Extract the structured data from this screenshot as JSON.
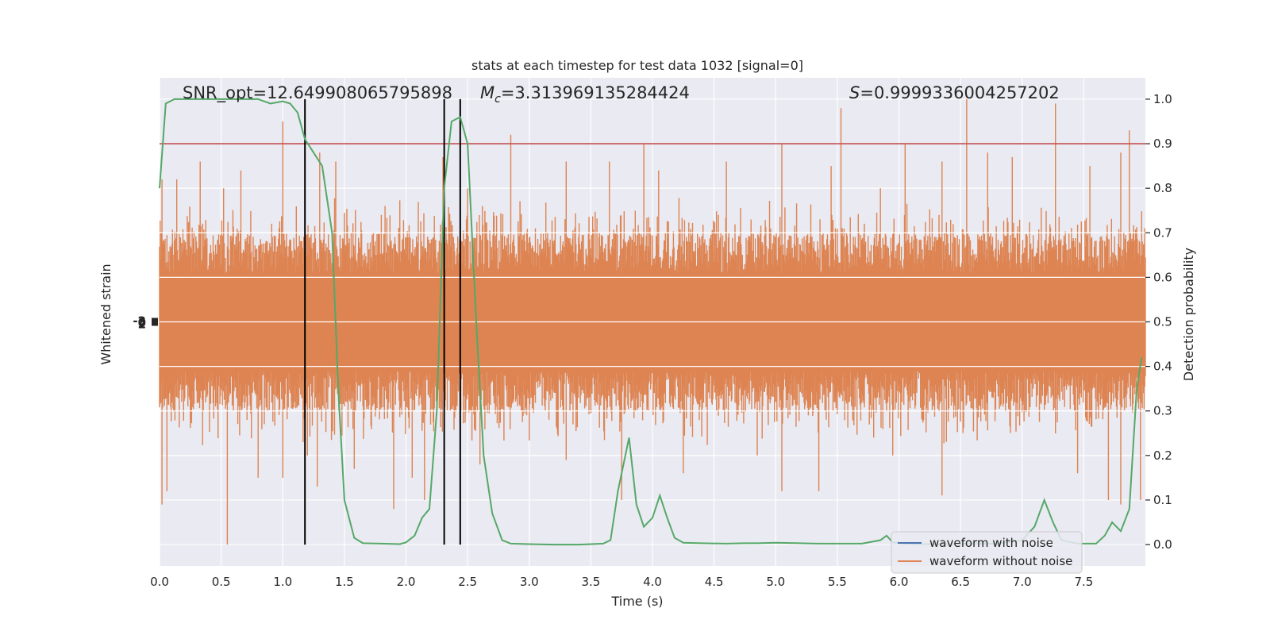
{
  "chart_data": {
    "type": "line",
    "title": "stats at each timestep for test data 1032 [signal=0]",
    "xlabel": "Time (s)",
    "ylabel_left": "Whitened strain",
    "ylabel_right": "Detection probability",
    "xlim": [
      0,
      8
    ],
    "ylim_right": [
      -0.048,
      1.048
    ],
    "x_ticks": [
      "0.0",
      "0.5",
      "1.0",
      "1.5",
      "2.0",
      "2.5",
      "3.0",
      "3.5",
      "4.0",
      "4.5",
      "5.0",
      "5.5",
      "6.0",
      "6.5",
      "7.0",
      "7.5"
    ],
    "y_ticks_right": [
      "0.0",
      "0.1",
      "0.2",
      "0.3",
      "0.4",
      "0.5",
      "0.6",
      "0.7",
      "0.8",
      "0.9",
      "1.0"
    ],
    "left_tick_labels": [
      "-2",
      "0",
      "2"
    ],
    "grid": true,
    "threshold": 0.9,
    "vlines": [
      1.18,
      2.31,
      2.44
    ],
    "annotations": {
      "snr": "SNR_opt=12.649908065795898",
      "mc_symbol": "M",
      "mc_sub": "c",
      "mc_value": "=3.313969135284424",
      "s_symbol": "S",
      "s_value": "=0.9999336004257202"
    },
    "legend": {
      "position": "lower-right",
      "entries": [
        {
          "label": "waveform with noise",
          "color": "#4c72b0"
        },
        {
          "label": "waveform without noise",
          "color": "#dd8452"
        }
      ]
    },
    "colors": {
      "noise": "#dd8452",
      "probability": "#55a868",
      "threshold": "#c44e52",
      "vline": "#000000",
      "plot_bg": "#eaeaf2",
      "grid": "#ffffff"
    },
    "series": [
      {
        "name": "waveform without noise",
        "band_center": 0.5,
        "band_halfwidth": 0.2,
        "upper_spikes": [
          [
            0.02,
            0.82
          ],
          [
            0.14,
            0.82
          ],
          [
            0.33,
            0.86
          ],
          [
            0.52,
            0.8
          ],
          [
            0.66,
            0.84
          ],
          [
            1.0,
            0.95
          ],
          [
            1.3,
            0.88
          ],
          [
            1.43,
            0.86
          ],
          [
            1.8,
            0.74
          ],
          [
            2.3,
            0.87
          ],
          [
            2.5,
            0.8
          ],
          [
            2.85,
            0.92
          ],
          [
            3.3,
            0.86
          ],
          [
            3.65,
            0.86
          ],
          [
            3.93,
            0.9
          ],
          [
            4.05,
            0.84
          ],
          [
            4.6,
            0.86
          ],
          [
            5.05,
            0.9
          ],
          [
            5.45,
            0.85
          ],
          [
            5.53,
            0.98
          ],
          [
            5.85,
            0.8
          ],
          [
            6.05,
            0.9
          ],
          [
            6.35,
            0.86
          ],
          [
            6.55,
            1.0
          ],
          [
            6.72,
            0.88
          ],
          [
            6.92,
            0.87
          ],
          [
            7.27,
            0.99
          ],
          [
            7.55,
            0.85
          ],
          [
            7.8,
            0.88
          ],
          [
            7.87,
            0.93
          ]
        ],
        "lower_spikes": [
          [
            0.02,
            0.09
          ],
          [
            0.06,
            0.12
          ],
          [
            0.55,
            0.0
          ],
          [
            0.8,
            0.15
          ],
          [
            1.0,
            0.15
          ],
          [
            1.2,
            0.2
          ],
          [
            1.28,
            0.13
          ],
          [
            1.58,
            0.17
          ],
          [
            1.9,
            0.08
          ],
          [
            2.05,
            0.15
          ],
          [
            2.15,
            0.1
          ],
          [
            2.6,
            0.18
          ],
          [
            3.3,
            0.19
          ],
          [
            3.75,
            0.1
          ],
          [
            4.25,
            0.16
          ],
          [
            4.85,
            0.2
          ],
          [
            5.05,
            0.12
          ],
          [
            5.35,
            0.12
          ],
          [
            5.95,
            0.2
          ],
          [
            6.35,
            0.11
          ],
          [
            7.45,
            0.16
          ],
          [
            7.7,
            0.1
          ],
          [
            7.8,
            0.09
          ],
          [
            7.96,
            0.1
          ]
        ]
      },
      {
        "name": "detection probability",
        "x": [
          0.0,
          0.05,
          0.12,
          0.2,
          0.3,
          0.4,
          0.5,
          0.6,
          0.7,
          0.8,
          0.9,
          1.0,
          1.06,
          1.12,
          1.18,
          1.25,
          1.32,
          1.4,
          1.45,
          1.5,
          1.58,
          1.65,
          1.8,
          1.95,
          2.0,
          2.07,
          2.13,
          2.19,
          2.25,
          2.31,
          2.37,
          2.44,
          2.5,
          2.57,
          2.63,
          2.7,
          2.78,
          2.85,
          3.0,
          3.2,
          3.4,
          3.6,
          3.66,
          3.72,
          3.81,
          3.87,
          3.93,
          4.0,
          4.06,
          4.12,
          4.18,
          4.25,
          4.4,
          4.6,
          4.75,
          4.85,
          5.0,
          5.2,
          5.35,
          5.5,
          5.7,
          5.85,
          5.9,
          5.95,
          6.05,
          6.2,
          6.4,
          6.6,
          6.8,
          7.0,
          7.1,
          7.18,
          7.25,
          7.32,
          7.45,
          7.6,
          7.67,
          7.73,
          7.8,
          7.87,
          7.93,
          7.97
        ],
        "y": [
          0.8,
          0.99,
          1.0,
          1.0,
          1.0,
          1.0,
          1.0,
          1.0,
          1.0,
          1.0,
          0.99,
          0.995,
          0.99,
          0.97,
          0.91,
          0.88,
          0.85,
          0.7,
          0.35,
          0.1,
          0.015,
          0.003,
          0.002,
          0.001,
          0.005,
          0.02,
          0.06,
          0.08,
          0.3,
          0.8,
          0.95,
          0.96,
          0.9,
          0.5,
          0.2,
          0.07,
          0.01,
          0.002,
          0.001,
          0.0,
          0.0,
          0.002,
          0.01,
          0.12,
          0.24,
          0.09,
          0.04,
          0.06,
          0.11,
          0.06,
          0.015,
          0.004,
          0.003,
          0.002,
          0.003,
          0.003,
          0.004,
          0.003,
          0.002,
          0.002,
          0.002,
          0.01,
          0.02,
          0.005,
          0.002,
          0.001,
          0.001,
          0.002,
          0.002,
          0.01,
          0.04,
          0.1,
          0.05,
          0.01,
          0.002,
          0.002,
          0.02,
          0.05,
          0.03,
          0.08,
          0.35,
          0.42
        ]
      }
    ]
  }
}
